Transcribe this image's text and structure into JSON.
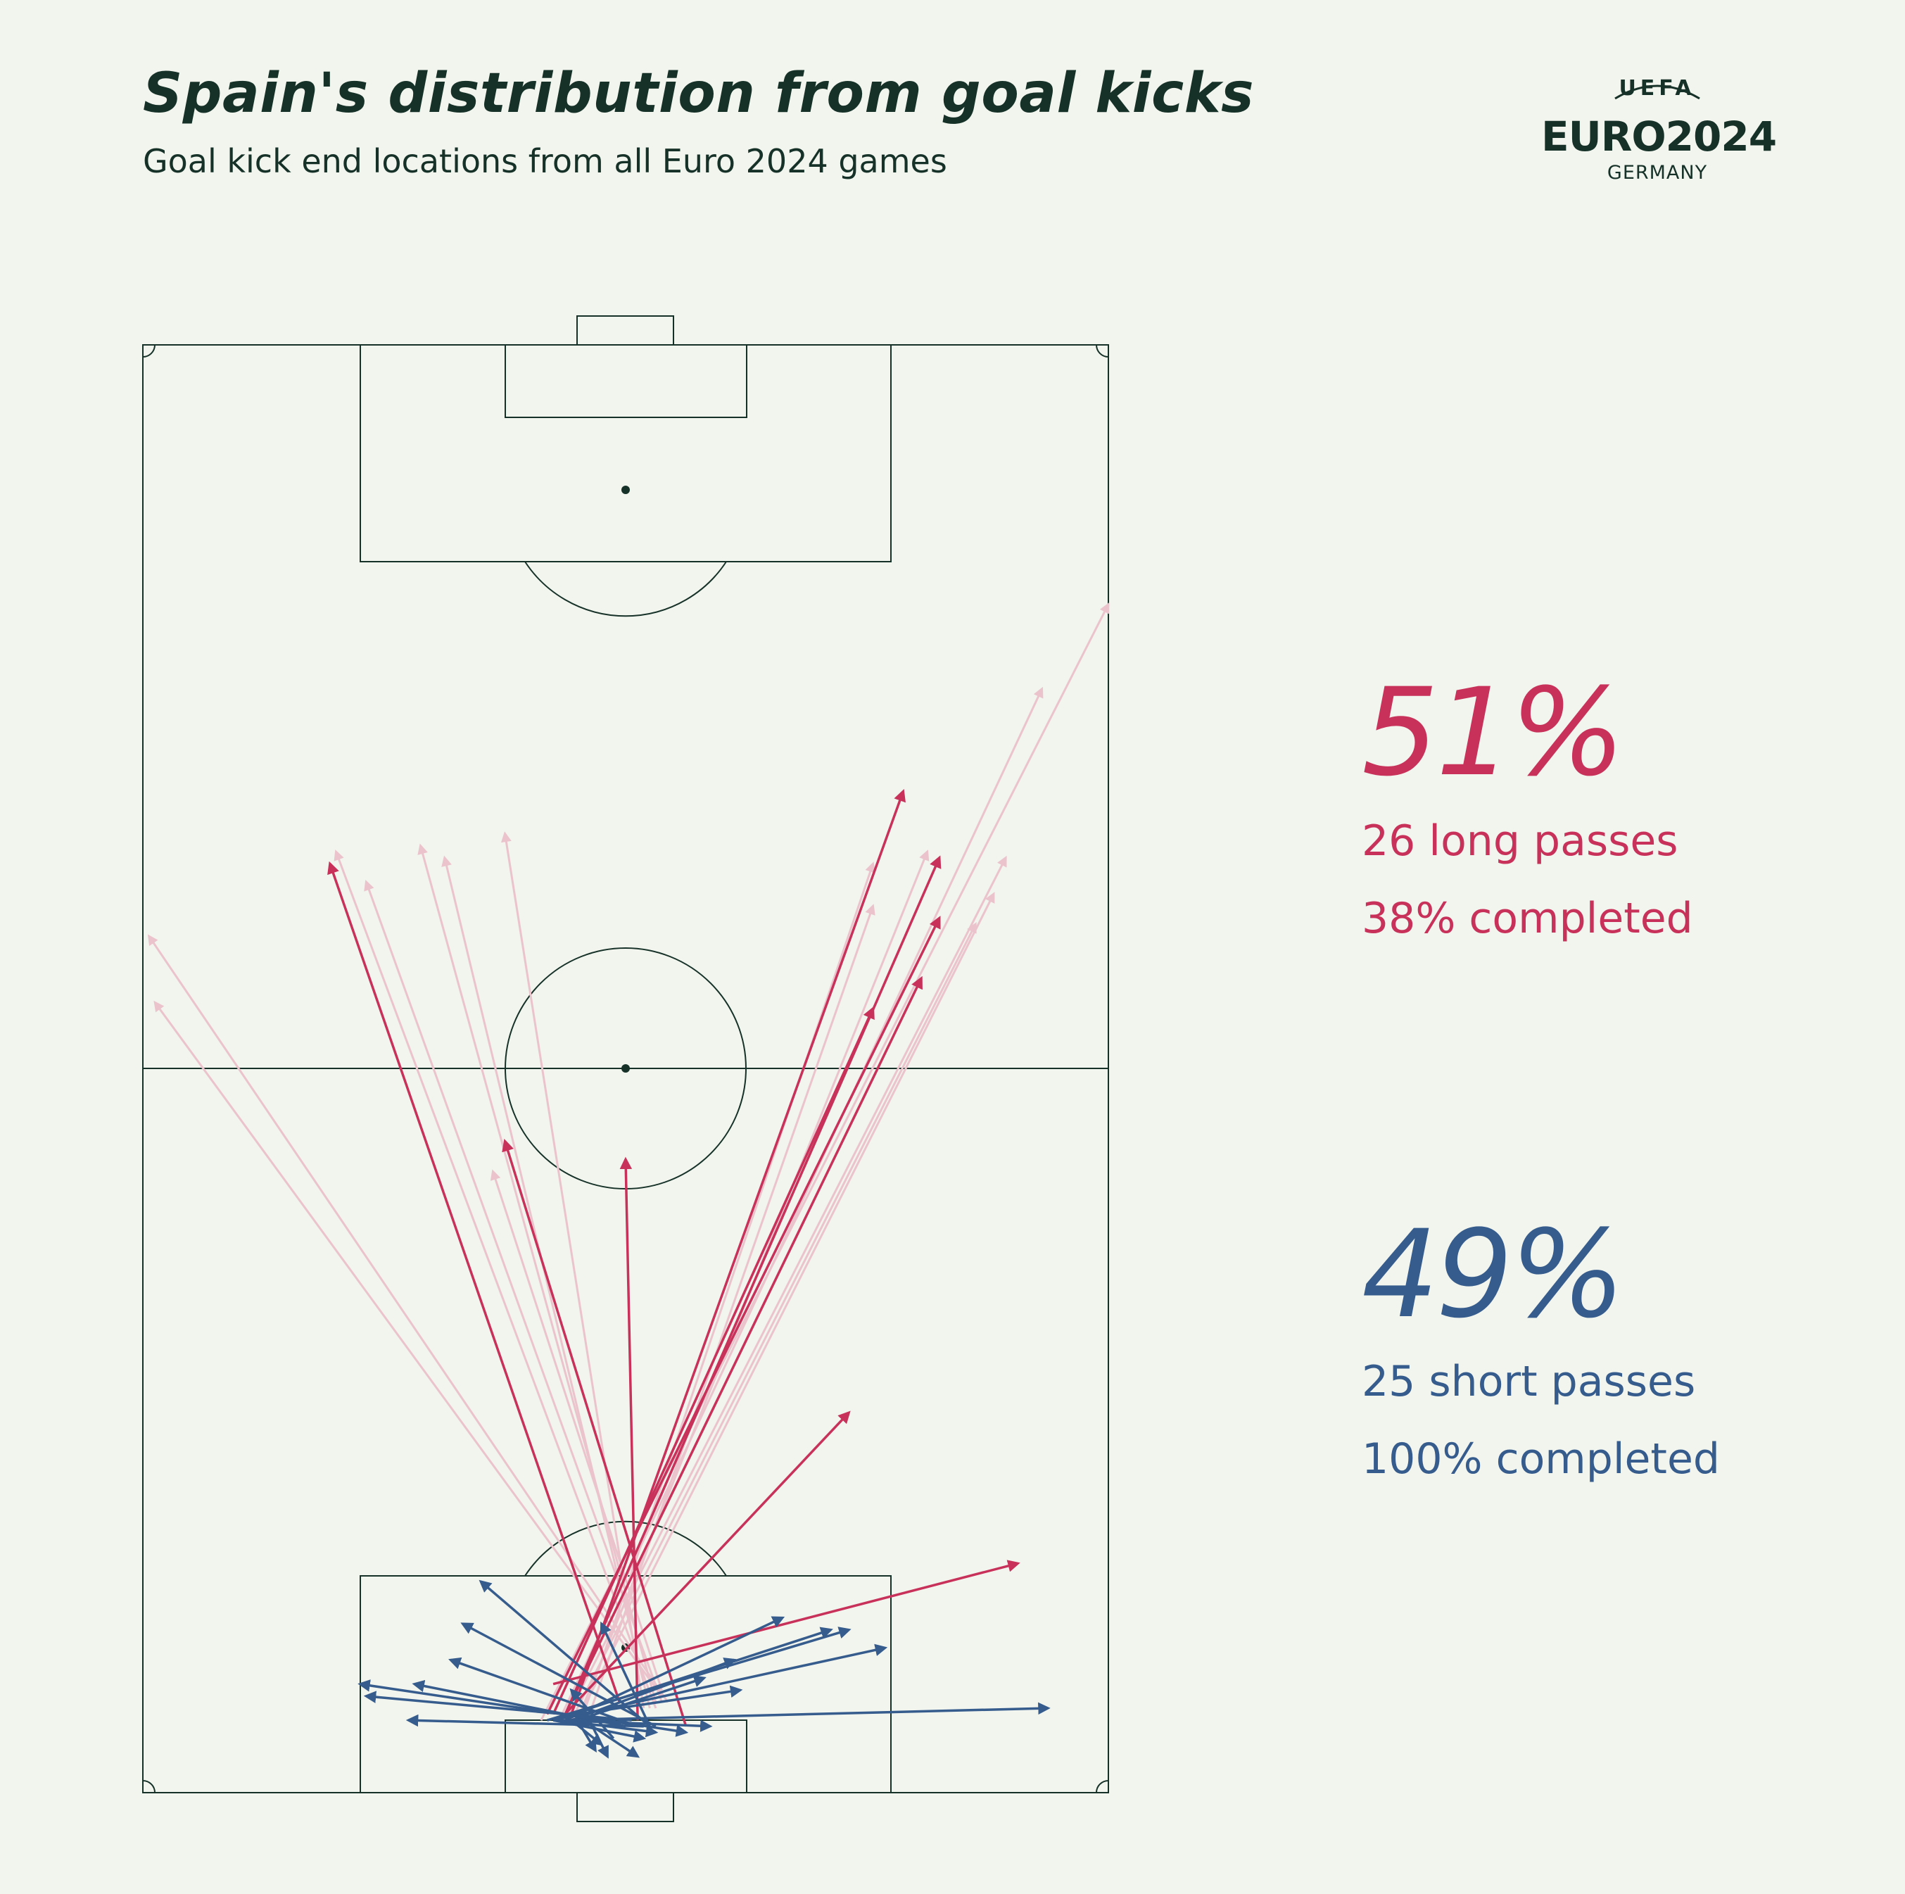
{
  "header": {
    "title": "Spain's distribution from goal kicks",
    "subtitle": "Goal kick end locations from all Euro 2024 games"
  },
  "logo": {
    "uefa": "UEFA",
    "euro": "EURO2024",
    "country": "GERMANY"
  },
  "stats": {
    "long": {
      "pct": "51%",
      "count_line": "26 long passes",
      "completion_line": "38% completed",
      "color": "#c8325a"
    },
    "short": {
      "pct": "49%",
      "count_line": "25 short passes",
      "completion_line": "100% completed",
      "color": "#355c8c"
    }
  },
  "chart_data": {
    "type": "pass-map",
    "pitch": {
      "length": 120,
      "width": 80,
      "orientation": "vertical",
      "attacking_direction": "up"
    },
    "colors": {
      "long_completed": "#c8325a",
      "long_failed": "#ebc3cd",
      "short": "#355c8c",
      "lines": "#163228"
    },
    "long_passes": [
      {
        "start": [
          6.5,
          34.0
        ],
        "end": [
          65.0,
          60.5
        ],
        "completed": true
      },
      {
        "start": [
          6.5,
          35.0
        ],
        "end": [
          77.5,
          66.0
        ],
        "completed": true
      },
      {
        "start": [
          6.5,
          33.5
        ],
        "end": [
          72.5,
          66.0
        ],
        "completed": true
      },
      {
        "start": [
          6.5,
          35.0
        ],
        "end": [
          67.5,
          64.5
        ],
        "completed": true
      },
      {
        "start": [
          6.5,
          35.5
        ],
        "end": [
          83.0,
          63.0
        ],
        "completed": true
      },
      {
        "start": [
          6.0,
          34.5
        ],
        "end": [
          31.5,
          58.5
        ],
        "completed": true
      },
      {
        "start": [
          6.0,
          41.0
        ],
        "end": [
          52.5,
          40.0
        ],
        "completed": true
      },
      {
        "start": [
          5.5,
          45.0
        ],
        "end": [
          54.0,
          30.0
        ],
        "completed": true
      },
      {
        "start": [
          7.5,
          39.5
        ],
        "end": [
          77.0,
          15.5
        ],
        "completed": true
      },
      {
        "start": [
          9.0,
          34.0
        ],
        "end": [
          19.0,
          72.5
        ],
        "completed": true
      },
      {
        "start": [
          6.0,
          33.0
        ],
        "end": [
          98.5,
          80.0
        ],
        "completed": false
      },
      {
        "start": [
          6.0,
          34.5
        ],
        "end": [
          91.5,
          74.5
        ],
        "completed": false
      },
      {
        "start": [
          6.0,
          35.0
        ],
        "end": [
          77.5,
          71.5
        ],
        "completed": false
      },
      {
        "start": [
          6.0,
          36.0
        ],
        "end": [
          74.5,
          70.5
        ],
        "completed": false
      },
      {
        "start": [
          6.0,
          35.5
        ],
        "end": [
          72.0,
          69.0
        ],
        "completed": false
      },
      {
        "start": [
          6.0,
          36.0
        ],
        "end": [
          78.0,
          65.0
        ],
        "completed": false
      },
      {
        "start": [
          6.5,
          36.5
        ],
        "end": [
          77.0,
          60.5
        ],
        "completed": false
      },
      {
        "start": [
          6.5,
          37.0
        ],
        "end": [
          73.5,
          60.5
        ],
        "completed": false
      },
      {
        "start": [
          7.0,
          41.5
        ],
        "end": [
          79.5,
          30.0
        ],
        "completed": false
      },
      {
        "start": [
          7.0,
          42.0
        ],
        "end": [
          77.5,
          25.0
        ],
        "completed": false
      },
      {
        "start": [
          7.5,
          42.5
        ],
        "end": [
          78.5,
          23.0
        ],
        "completed": false
      },
      {
        "start": [
          7.5,
          43.0
        ],
        "end": [
          75.5,
          18.5
        ],
        "completed": false
      },
      {
        "start": [
          7.0,
          42.5
        ],
        "end": [
          78.0,
          16.0
        ],
        "completed": false
      },
      {
        "start": [
          8.0,
          43.0
        ],
        "end": [
          65.5,
          1.0
        ],
        "completed": false
      },
      {
        "start": [
          7.5,
          43.5
        ],
        "end": [
          71.0,
          0.5
        ],
        "completed": false
      },
      {
        "start": [
          8.5,
          43.0
        ],
        "end": [
          51.5,
          29.0
        ],
        "completed": false
      }
    ],
    "short_passes": [
      {
        "start": [
          6.0,
          35.0
        ],
        "end": [
          14.5,
          53.0
        ]
      },
      {
        "start": [
          6.0,
          34.0
        ],
        "end": [
          13.5,
          57.0
        ]
      },
      {
        "start": [
          6.0,
          33.5
        ],
        "end": [
          13.5,
          58.5
        ]
      },
      {
        "start": [
          6.0,
          34.0
        ],
        "end": [
          12.0,
          61.5
        ]
      },
      {
        "start": [
          6.0,
          35.5
        ],
        "end": [
          11.0,
          49.0
        ]
      },
      {
        "start": [
          6.0,
          36.0
        ],
        "end": [
          9.5,
          46.5
        ]
      },
      {
        "start": [
          6.5,
          36.0
        ],
        "end": [
          8.5,
          49.5
        ]
      },
      {
        "start": [
          6.0,
          35.0
        ],
        "end": [
          7.0,
          75.0
        ]
      },
      {
        "start": [
          6.0,
          34.5
        ],
        "end": [
          5.5,
          47.0
        ]
      },
      {
        "start": [
          6.0,
          34.5
        ],
        "end": [
          5.0,
          42.5
        ]
      },
      {
        "start": [
          6.0,
          34.0
        ],
        "end": [
          4.5,
          41.5
        ]
      },
      {
        "start": [
          6.0,
          35.5
        ],
        "end": [
          4.0,
          38.0
        ]
      },
      {
        "start": [
          6.0,
          36.0
        ],
        "end": [
          3.5,
          37.5
        ]
      },
      {
        "start": [
          6.0,
          36.5
        ],
        "end": [
          3.0,
          41.0
        ]
      },
      {
        "start": [
          6.0,
          37.0
        ],
        "end": [
          3.0,
          38.5
        ]
      },
      {
        "start": [
          6.0,
          38.5
        ],
        "end": [
          5.0,
          45.0
        ]
      },
      {
        "start": [
          5.5,
          42.0
        ],
        "end": [
          14.0,
          38.0
        ]
      },
      {
        "start": [
          5.5,
          42.0
        ],
        "end": [
          17.5,
          28.0
        ]
      },
      {
        "start": [
          5.5,
          42.5
        ],
        "end": [
          14.0,
          26.5
        ]
      },
      {
        "start": [
          5.5,
          41.0
        ],
        "end": [
          11.0,
          25.5
        ]
      },
      {
        "start": [
          5.5,
          40.0
        ],
        "end": [
          9.0,
          22.5
        ]
      },
      {
        "start": [
          5.5,
          41.5
        ],
        "end": [
          9.0,
          18.0
        ]
      },
      {
        "start": [
          6.0,
          40.5
        ],
        "end": [
          8.0,
          18.5
        ]
      },
      {
        "start": [
          5.5,
          41.5
        ],
        "end": [
          6.0,
          22.0
        ]
      },
      {
        "start": [
          4.5,
          39.0
        ],
        "end": [
          8.5,
          35.5
        ]
      }
    ]
  }
}
